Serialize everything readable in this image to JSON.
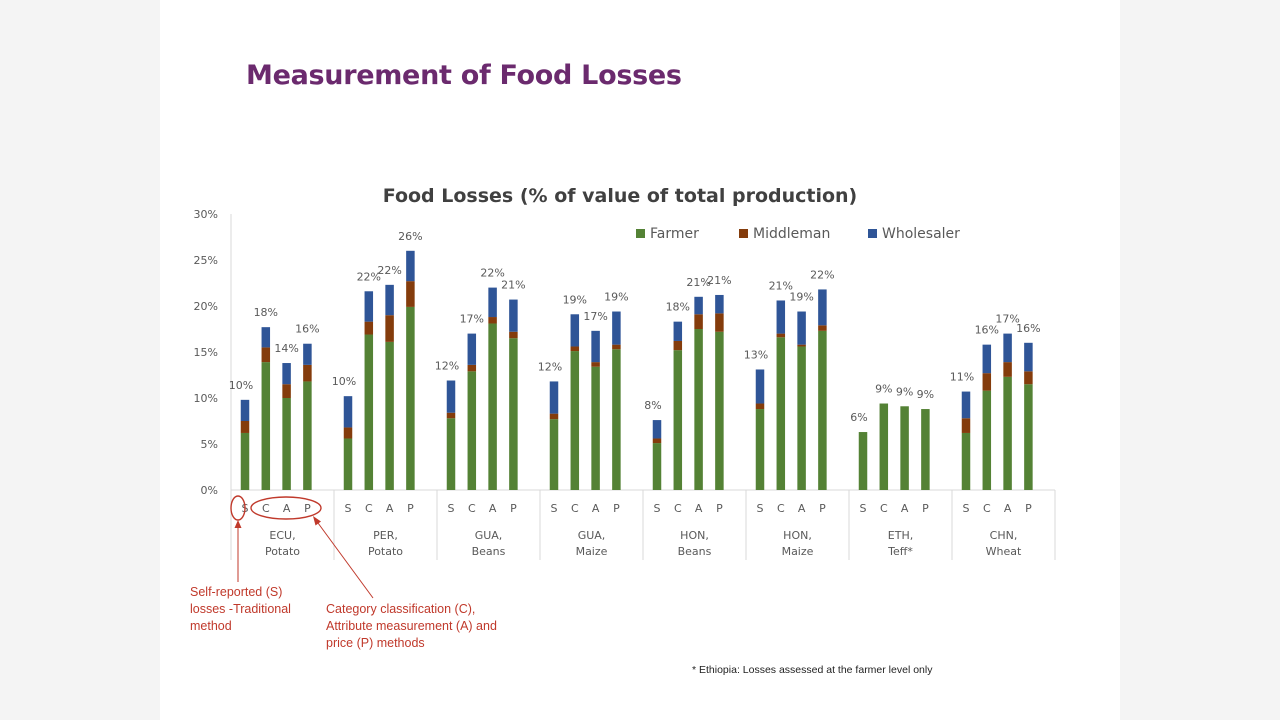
{
  "slide": {
    "title": "Measurement of Food Losses",
    "annotations": {
      "self_reported": "Self-reported (S) losses -Traditional method",
      "category": "Category classification (C), Attribute measurement (A) and price (P) methods"
    },
    "footnote": "* Ethiopia: Losses assessed at the farmer level only"
  },
  "colors": {
    "farmer": "#548235",
    "middleman": "#843c0c",
    "wholesaler": "#2f5597",
    "annotation": "#c0392b",
    "title": "#6b2a6e"
  },
  "chart_data": {
    "type": "bar",
    "stacked": true,
    "title": "Food Losses (% of value of total production)",
    "y_ticks": [
      "0%",
      "5%",
      "10%",
      "15%",
      "20%",
      "25%",
      "30%"
    ],
    "ylim": [
      0,
      30
    ],
    "legend_position": "top-right",
    "methods": [
      "S",
      "C",
      "A",
      "P"
    ],
    "groups": [
      {
        "label_line1": "ECU,",
        "label_line2": "Potato",
        "farmer": [
          6.2,
          13.9,
          10.0,
          11.8
        ],
        "middleman": [
          1.3,
          1.6,
          1.5,
          1.8
        ],
        "wholesaler": [
          2.3,
          2.2,
          2.3,
          2.3
        ],
        "totals": [
          "10%",
          "18%",
          "14%",
          "16%"
        ]
      },
      {
        "label_line1": "PER,",
        "label_line2": "Potato",
        "farmer": [
          5.6,
          16.9,
          16.1,
          19.9
        ],
        "middleman": [
          1.2,
          1.4,
          2.9,
          2.8
        ],
        "wholesaler": [
          3.4,
          3.3,
          3.3,
          3.3
        ],
        "totals": [
          "10%",
          "22%",
          "22%",
          "26%"
        ]
      },
      {
        "label_line1": "GUA,",
        "label_line2": "Beans",
        "farmer": [
          7.8,
          12.9,
          18.1,
          16.5
        ],
        "middleman": [
          0.6,
          0.7,
          0.7,
          0.7
        ],
        "wholesaler": [
          3.5,
          3.4,
          3.2,
          3.5
        ],
        "totals": [
          "12%",
          "17%",
          "22%",
          "21%"
        ]
      },
      {
        "label_line1": "GUA,",
        "label_line2": "Maize",
        "farmer": [
          7.7,
          15.1,
          13.4,
          15.3
        ],
        "middleman": [
          0.6,
          0.5,
          0.5,
          0.5
        ],
        "wholesaler": [
          3.5,
          3.5,
          3.4,
          3.6
        ],
        "totals": [
          "12%",
          "19%",
          "17%",
          "19%"
        ]
      },
      {
        "label_line1": "HON,",
        "label_line2": "Beans",
        "farmer": [
          5.1,
          15.2,
          17.5,
          17.2
        ],
        "middleman": [
          0.5,
          1.0,
          1.6,
          2.0
        ],
        "wholesaler": [
          2.0,
          2.1,
          1.9,
          2.0
        ],
        "totals": [
          "8%",
          "18%",
          "21%",
          "21%"
        ]
      },
      {
        "label_line1": "HON,",
        "label_line2": "Maize",
        "farmer": [
          8.8,
          16.6,
          15.6,
          17.3
        ],
        "middleman": [
          0.6,
          0.4,
          0.2,
          0.6
        ],
        "wholesaler": [
          3.7,
          3.6,
          3.6,
          3.9
        ],
        "totals": [
          "13%",
          "21%",
          "19%",
          "22%"
        ]
      },
      {
        "label_line1": "ETH,",
        "label_line2": "Teff*",
        "farmer": [
          6.3,
          9.4,
          9.1,
          8.8
        ],
        "middleman": [
          0,
          0,
          0,
          0
        ],
        "wholesaler": [
          0,
          0,
          0,
          0
        ],
        "totals": [
          "6%",
          "9%",
          "9%",
          "9%"
        ]
      },
      {
        "label_line1": "CHN,",
        "label_line2": "Wheat",
        "farmer": [
          6.2,
          10.8,
          12.3,
          11.5
        ],
        "middleman": [
          1.6,
          1.9,
          1.6,
          1.4
        ],
        "wholesaler": [
          2.9,
          3.1,
          3.1,
          3.1
        ],
        "totals": [
          "11%",
          "16%",
          "17%",
          "16%"
        ]
      }
    ],
    "series": [
      {
        "name": "Farmer",
        "key": "farmer"
      },
      {
        "name": "Middleman",
        "key": "middleman"
      },
      {
        "name": "Wholesaler",
        "key": "wholesaler"
      }
    ]
  }
}
